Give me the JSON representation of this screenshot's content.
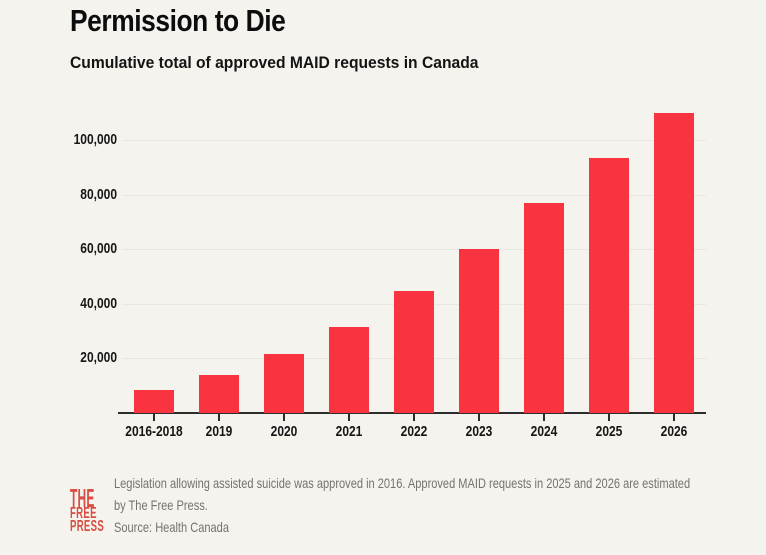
{
  "chart_data": {
    "type": "bar",
    "title": "Permission to Die",
    "subtitle": "Cumulative total of approved MAID requests in Canada",
    "categories": [
      "2016-2018",
      "2019",
      "2020",
      "2021",
      "2022",
      "2023",
      "2024",
      "2025",
      "2026"
    ],
    "values": [
      8400,
      14000,
      21500,
      31600,
      44900,
      60200,
      77000,
      93500,
      110000
    ],
    "xlabel": "",
    "ylabel": "",
    "ylim": [
      0,
      113000
    ],
    "yticks": [
      20000,
      40000,
      60000,
      80000,
      100000
    ],
    "ytick_labels": [
      "20,000",
      "40,000",
      "60,000",
      "80,000",
      "100,000"
    ],
    "grid": true,
    "legend": false,
    "bar_color": "#f93340",
    "axis_color": "#2d2d2d",
    "gridline_color": "#e9e7e0",
    "background_color": "#f5f3ed",
    "text_color": "#161616"
  },
  "footer": {
    "logo_lines": [
      "THE",
      "FREE",
      "PRESS"
    ],
    "logo_color": "#d94d43",
    "note": "Legislation allowing assisted suicide was approved in 2016. Approved MAID requests in 2025 and 2026 are estimated by The Free Press.",
    "source": "Source: Health Canada"
  }
}
